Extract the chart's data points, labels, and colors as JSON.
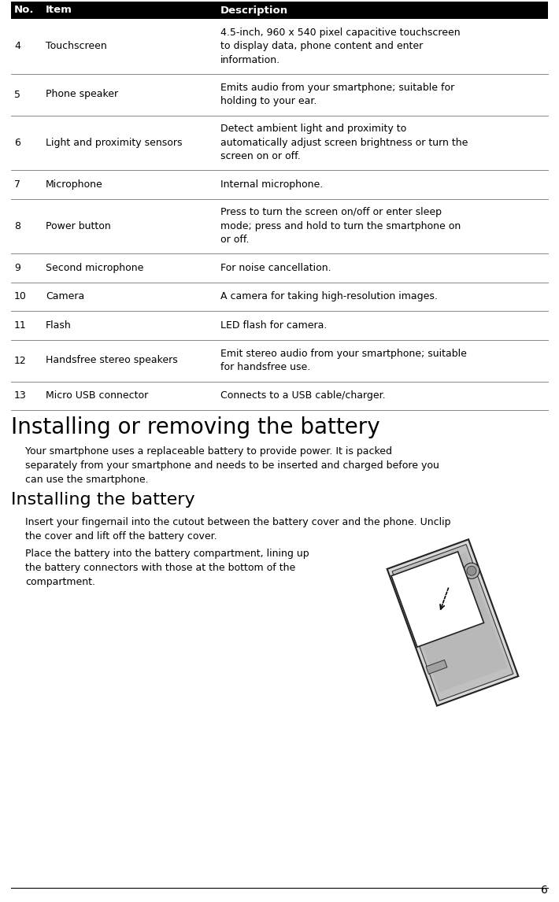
{
  "bg_color": "#ffffff",
  "header_bg": "#000000",
  "header_text_color": "#ffffff",
  "body_text_color": "#000000",
  "line_color": "#555555",
  "page_number": "6",
  "header": {
    "col1": "No.",
    "col2": "Item",
    "col3": "Description"
  },
  "rows": [
    {
      "no": "4",
      "item": "Touchscreen",
      "desc": "4.5-inch, 960 x 540 pixel capacitive touchscreen\nto display data, phone content and enter\ninformation.",
      "nlines": 3
    },
    {
      "no": "5",
      "item": "Phone speaker",
      "desc": "Emits audio from your smartphone; suitable for\nholding to your ear.",
      "nlines": 2
    },
    {
      "no": "6",
      "item": "Light and proximity sensors",
      "desc": "Detect ambient light and proximity to\nautomatically adjust screen brightness or turn the\nscreen on or off.",
      "nlines": 3
    },
    {
      "no": "7",
      "item": "Microphone",
      "desc": "Internal microphone.",
      "nlines": 1
    },
    {
      "no": "8",
      "item": "Power button",
      "desc": "Press to turn the screen on/off or enter sleep\nmode; press and hold to turn the smartphone on\nor off.",
      "nlines": 3
    },
    {
      "no": "9",
      "item": "Second microphone",
      "desc": "For noise cancellation.",
      "nlines": 1
    },
    {
      "no": "10",
      "item": "Camera",
      "desc": "A camera for taking high-resolution images.",
      "nlines": 1
    },
    {
      "no": "11",
      "item": "Flash",
      "desc": "LED flash for camera.",
      "nlines": 1
    },
    {
      "no": "12",
      "item": "Handsfree stereo speakers",
      "desc": "Emit stereo audio from your smartphone; suitable\nfor handsfree use.",
      "nlines": 2
    },
    {
      "no": "13",
      "item": "Micro USB connector",
      "desc": "Connects to a USB cable/charger.",
      "nlines": 1
    }
  ],
  "section_title": "Installing or removing the battery",
  "section_intro": "Your smartphone uses a replaceable battery to provide power. It is packed\nseparately from your smartphone and needs to be inserted and charged before you\ncan use the smartphone.",
  "subsection_title": "Installing the battery",
  "step1": "Insert your fingernail into the cutout between the battery cover and the phone. Unclip\nthe cover and lift off the battery cover.",
  "step2": "Place the battery into the battery compartment, lining up\nthe battery connectors with those at the bottom of the\ncompartment."
}
